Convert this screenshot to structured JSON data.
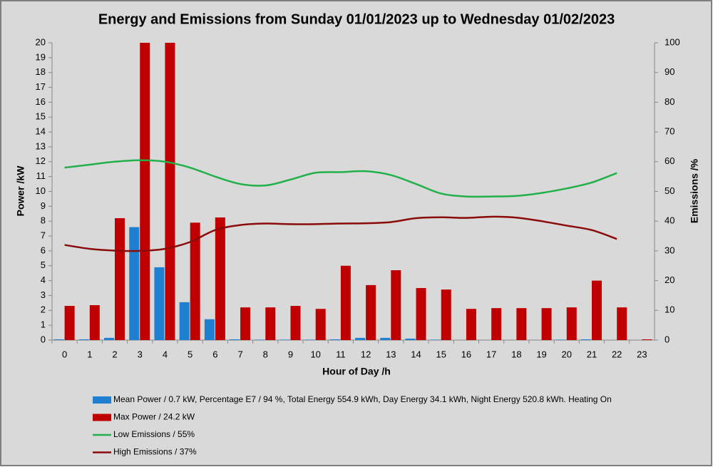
{
  "chart_data": {
    "type": "bar",
    "title": "Energy and Emissions from Sunday 01/01/2023 up to Wednesday 01/02/2023",
    "x_label": "Hour of Day /h",
    "y_label": "Power /kW",
    "y2_label": "Emissions /%",
    "categories": [
      "0",
      "1",
      "2",
      "3",
      "4",
      "5",
      "6",
      "7",
      "8",
      "9",
      "10",
      "11",
      "12",
      "13",
      "14",
      "15",
      "16",
      "17",
      "18",
      "19",
      "20",
      "21",
      "22",
      "23"
    ],
    "ylim": [
      0,
      20
    ],
    "yticks": [
      0,
      1,
      2,
      3,
      4,
      5,
      6,
      7,
      8,
      9,
      10,
      11,
      12,
      13,
      14,
      15,
      16,
      17,
      18,
      19,
      20
    ],
    "y2lim": [
      0,
      100
    ],
    "y2ticks": [
      0,
      10,
      20,
      30,
      40,
      50,
      60,
      70,
      80,
      90,
      100
    ],
    "grid": false,
    "legend": "bottom",
    "series": [
      {
        "name": "Mean Power / 0.7 kW, Percentage E7 / 94 %, Total Energy 554.9 kWh, Day Energy 34.1 kWh, Night Energy 520.8 kWh. Heating On",
        "type": "bar",
        "color": "#1f7fd0",
        "values": [
          0.05,
          0.05,
          0.15,
          7.6,
          4.9,
          2.55,
          1.4,
          0.05,
          0.03,
          0.03,
          0.03,
          0.05,
          0.15,
          0.15,
          0.1,
          0.03,
          0,
          0,
          0,
          0,
          0.03,
          0.05,
          0,
          0
        ]
      },
      {
        "name": "Max Power / 24.2 kW",
        "type": "bar",
        "color": "#c00000",
        "values": [
          2.3,
          2.35,
          8.2,
          20,
          20,
          7.9,
          8.25,
          2.2,
          2.2,
          2.3,
          2.1,
          5.0,
          3.7,
          4.7,
          3.5,
          3.4,
          2.1,
          2.15,
          2.15,
          2.15,
          2.2,
          4.0,
          2.2,
          0.05
        ]
      },
      {
        "name": "Low Emissions / 55%",
        "type": "line",
        "axis": "y2",
        "color": "#22b04a",
        "values": [
          58,
          59,
          60,
          60.5,
          60,
          58,
          55,
          52.5,
          52,
          54,
          56.3,
          56.5,
          56.8,
          55.5,
          52.5,
          49.3,
          48.3,
          48.3,
          48.5,
          49.5,
          51,
          53,
          56.2,
          null
        ]
      },
      {
        "name": "High Emissions / 37%",
        "type": "line",
        "axis": "y2",
        "color": "#8b0a0a",
        "values": [
          32,
          30.7,
          30.1,
          30,
          30.7,
          33,
          37,
          38.7,
          39.2,
          39,
          39,
          39.2,
          39.3,
          39.7,
          41,
          41.3,
          41.1,
          41.5,
          41.2,
          40,
          38.5,
          37,
          34,
          null
        ]
      }
    ]
  }
}
